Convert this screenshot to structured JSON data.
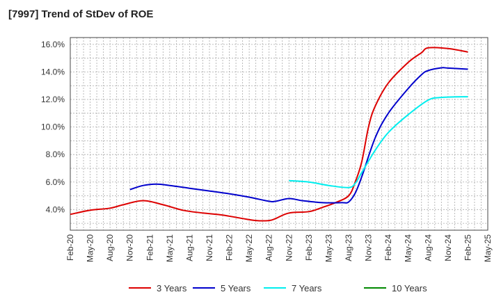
{
  "chart_data": {
    "type": "line",
    "title": "[7997]  Trend of StDev of ROE",
    "xlabel": "",
    "ylabel": "",
    "x_ticks": [
      "Feb-20",
      "May-20",
      "Aug-20",
      "Nov-20",
      "Feb-21",
      "May-21",
      "Aug-21",
      "Nov-21",
      "Feb-22",
      "May-22",
      "Aug-22",
      "Nov-22",
      "Feb-23",
      "May-23",
      "Aug-23",
      "Nov-23",
      "Feb-24",
      "May-24",
      "Aug-24",
      "Nov-24",
      "Feb-25",
      "May-25"
    ],
    "y_ticks": [
      "4.0%",
      "6.0%",
      "8.0%",
      "10.0%",
      "12.0%",
      "14.0%",
      "16.0%"
    ],
    "ylim": [
      2.5,
      16.5
    ],
    "grid": true,
    "legend_position": "bottom",
    "series": [
      {
        "name": "3 Years",
        "color": "#dd0000",
        "x": [
          "Feb-20",
          "May-20",
          "Aug-20",
          "Oct-20",
          "Jan-21",
          "Apr-21",
          "Jul-21",
          "Oct-21",
          "Jan-22",
          "Apr-22",
          "Jun-22",
          "Aug-22",
          "Sep-22",
          "Nov-22",
          "Feb-23",
          "Apr-23",
          "Jun-23",
          "Aug-23",
          "Sep-23",
          "Oct-23",
          "Nov-23",
          "Dec-23",
          "Feb-24",
          "May-24",
          "Jul-24",
          "Aug-24",
          "Nov-24",
          "Feb-25"
        ],
        "values": [
          3.65,
          3.95,
          4.1,
          4.35,
          4.65,
          4.35,
          3.95,
          3.75,
          3.6,
          3.35,
          3.2,
          3.2,
          3.35,
          3.75,
          3.85,
          4.15,
          4.5,
          5.0,
          6.0,
          7.5,
          10.0,
          11.5,
          13.2,
          14.7,
          15.4,
          15.75,
          15.7,
          15.45
        ]
      },
      {
        "name": "5 Years",
        "color": "#0000cc",
        "x": [
          "Nov-20",
          "Jan-21",
          "Mar-21",
          "May-21",
          "Aug-21",
          "Nov-21",
          "Feb-22",
          "May-22",
          "Aug-22",
          "Sep-22",
          "Nov-22",
          "Jan-23",
          "Apr-23",
          "Jul-23",
          "Aug-23",
          "Sep-23",
          "Oct-23",
          "Dec-23",
          "Feb-24",
          "May-24",
          "Jul-24",
          "Aug-24",
          "Oct-24",
          "Nov-24",
          "Feb-25"
        ],
        "values": [
          5.45,
          5.75,
          5.85,
          5.75,
          5.55,
          5.35,
          5.15,
          4.9,
          4.6,
          4.6,
          4.8,
          4.65,
          4.5,
          4.5,
          4.55,
          5.2,
          6.4,
          9.2,
          11.0,
          12.8,
          13.8,
          14.1,
          14.3,
          14.28,
          14.2
        ]
      },
      {
        "name": "7 Years",
        "color": "#00eeee",
        "x": [
          "Nov-22",
          "Feb-23",
          "May-23",
          "Aug-23",
          "Sep-23",
          "Oct-23",
          "Dec-23",
          "Feb-24",
          "May-24",
          "Aug-24",
          "Oct-24",
          "Feb-25"
        ],
        "values": [
          6.1,
          6.0,
          5.75,
          5.6,
          5.9,
          6.7,
          8.3,
          9.6,
          10.9,
          11.95,
          12.15,
          12.2
        ]
      },
      {
        "name": "10 Years",
        "color": "#008800",
        "x": [],
        "values": []
      }
    ]
  }
}
